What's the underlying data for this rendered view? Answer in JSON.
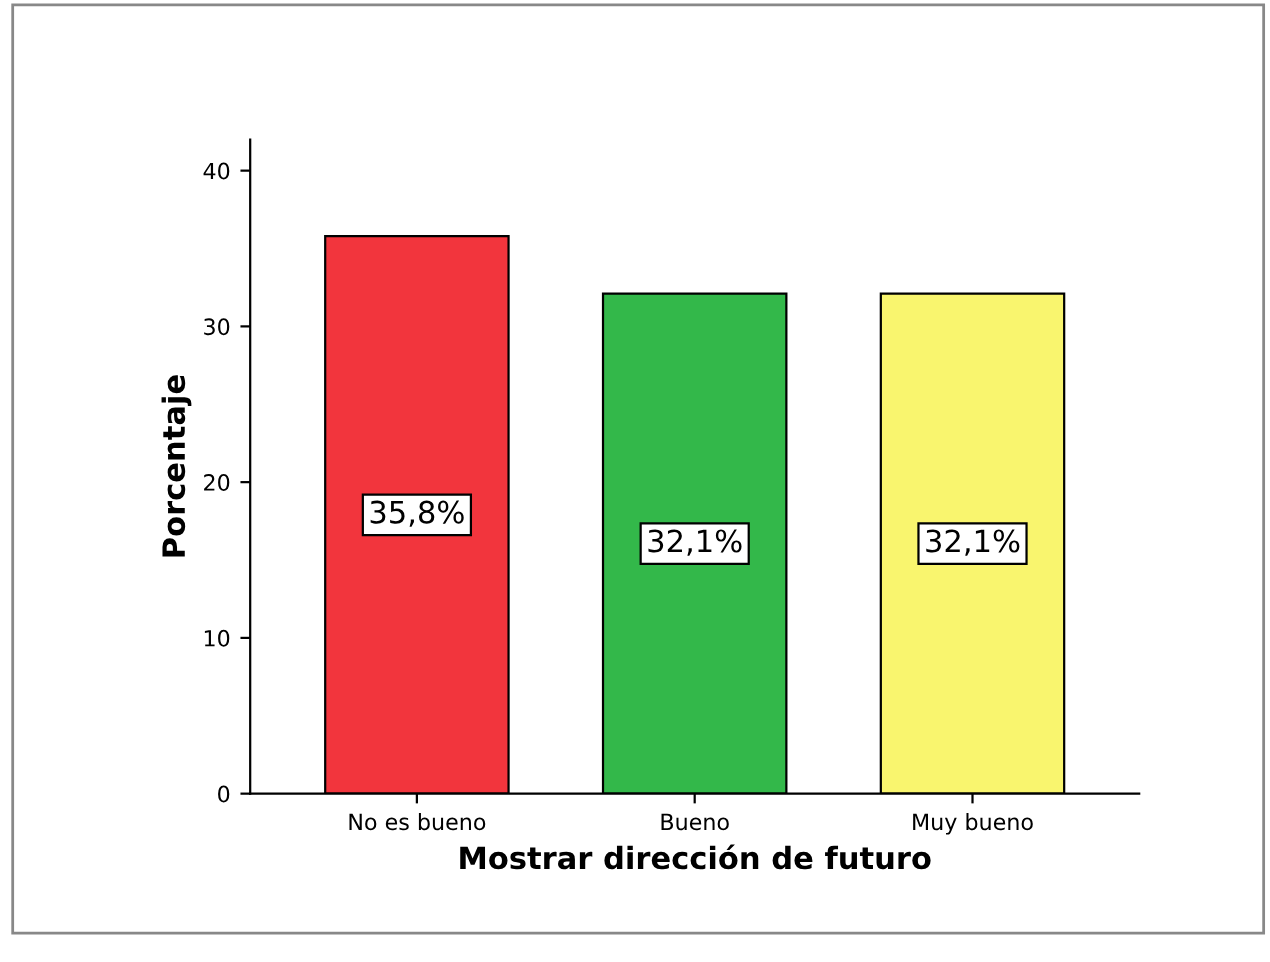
{
  "chart_data": {
    "type": "bar",
    "xlabel": "Mostrar dirección de futuro",
    "ylabel": "Porcentaje",
    "categories": [
      "No es bueno",
      "Bueno",
      "Muy bueno"
    ],
    "values": [
      35.8,
      32.1,
      32.1
    ],
    "colors": [
      "#f2353d",
      "#33b84a",
      "#f9f56e"
    ],
    "value_labels": [
      "35,8%",
      "32,1%",
      "32,1%"
    ],
    "ylim": [
      0,
      42
    ],
    "yticks": [
      0,
      10,
      20,
      30,
      40
    ],
    "grid": false
  }
}
